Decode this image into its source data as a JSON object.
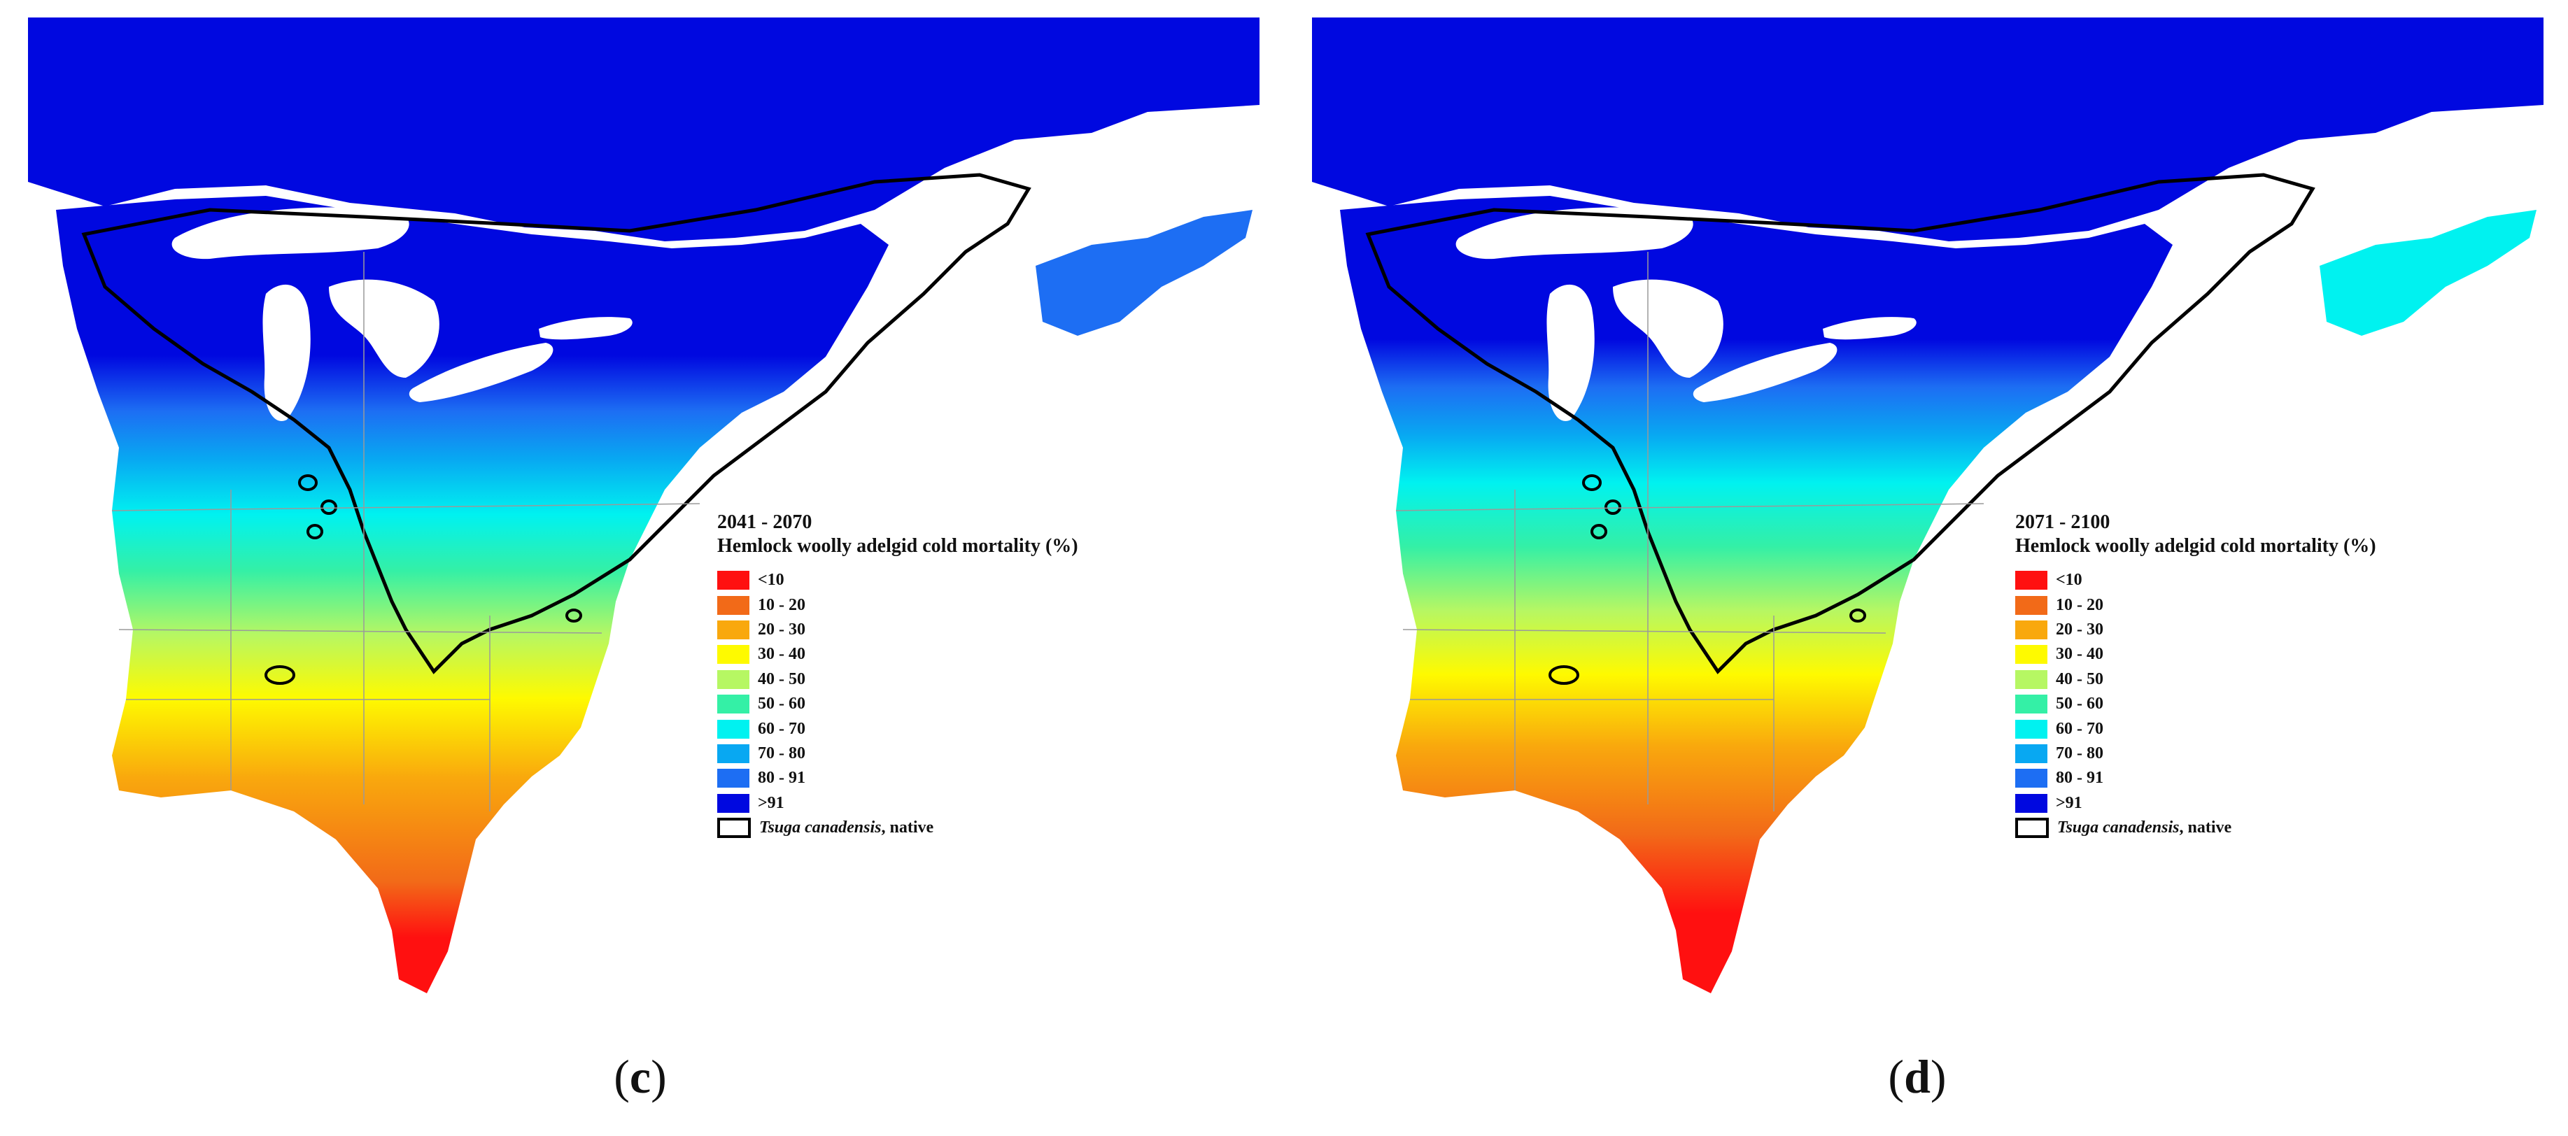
{
  "panels": [
    {
      "id": "c",
      "period": "2041 - 2070",
      "legend_title": "Hemlock woolly adelgid cold mortality (%)",
      "caption_letter": "c"
    },
    {
      "id": "d",
      "period": "2071 - 2100",
      "legend_title": "Hemlock woolly adelgid cold mortality (%)",
      "caption_letter": "d"
    }
  ],
  "legend_classes": [
    {
      "label": "<10",
      "color": "#ff1010"
    },
    {
      "label": "10 - 20",
      "color": "#f26a18"
    },
    {
      "label": "20 - 30",
      "color": "#f9a80d"
    },
    {
      "label": "30 - 40",
      "color": "#fefa00"
    },
    {
      "label": "40 - 50",
      "color": "#b6f763"
    },
    {
      "label": "50 - 60",
      "color": "#34f0a6"
    },
    {
      "label": "60 - 70",
      "color": "#00f2f0"
    },
    {
      "label": "70 - 80",
      "color": "#08a8f2"
    },
    {
      "label": "80 - 91",
      "color": "#1d6ef3"
    },
    {
      "label": ">91",
      "color": "#0008e0"
    }
  ],
  "native_range_label": {
    "species": "Tsuga canadensis",
    "suffix": ", native"
  },
  "colors": {
    "background": "#ffffff",
    "lakes": "#ffffff",
    "range_outline": "#000000",
    "state_borders": "#9a9a9a"
  }
}
